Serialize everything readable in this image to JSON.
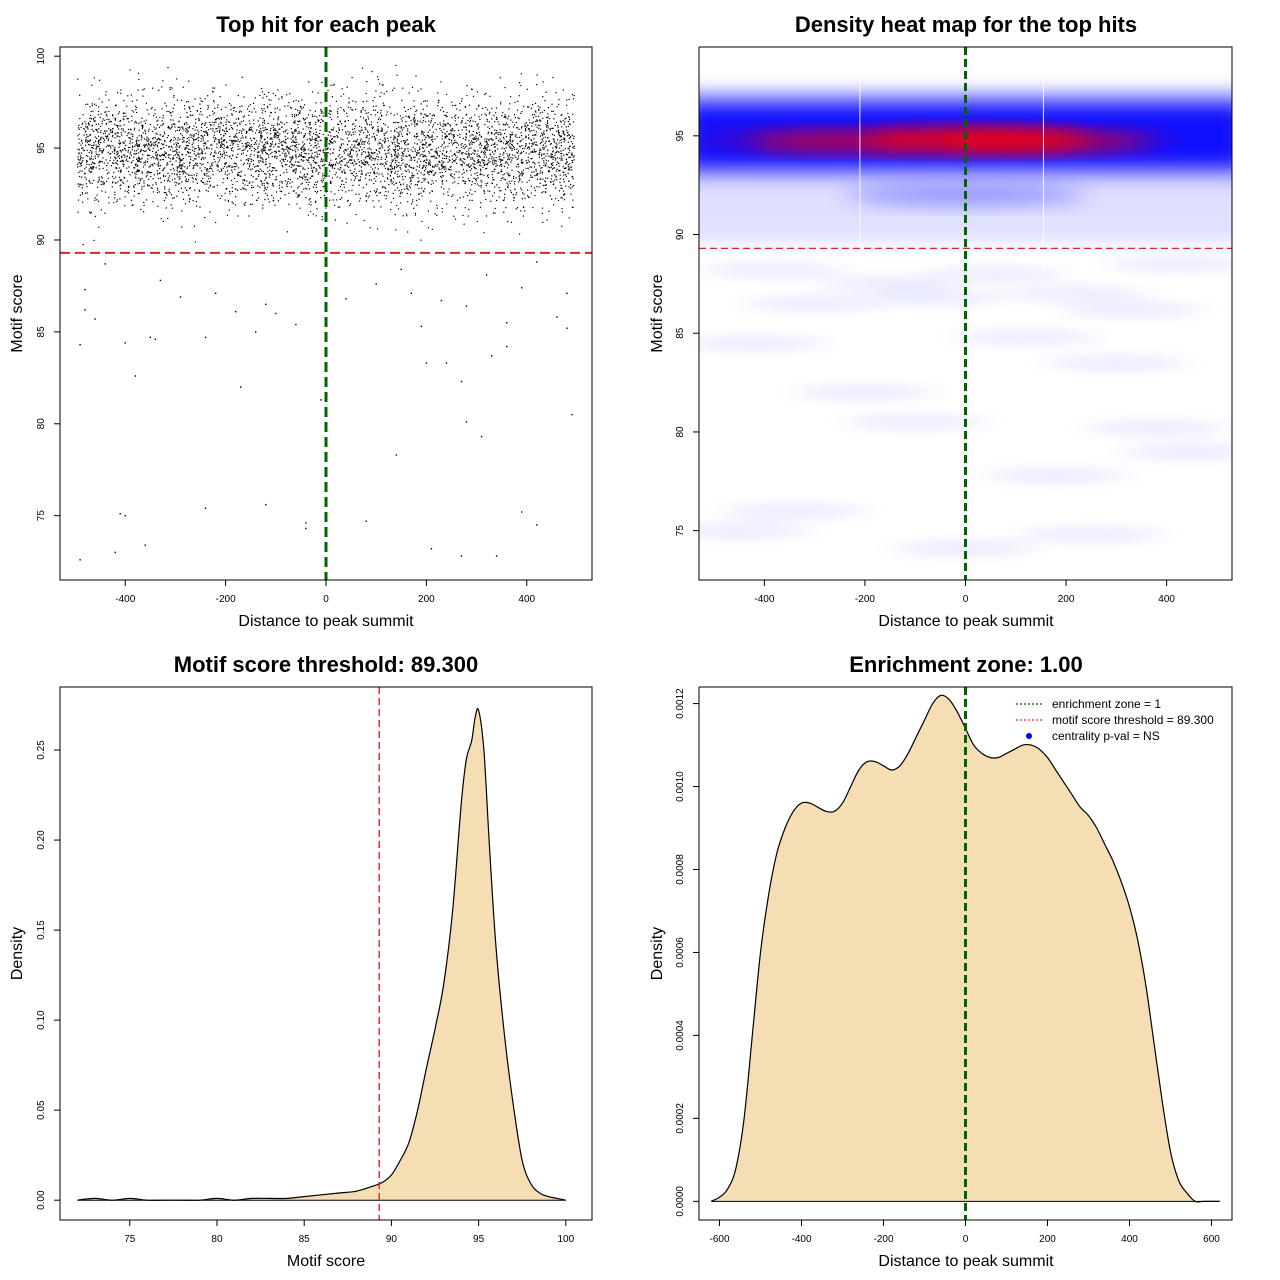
{
  "chart_data": [
    {
      "type": "scatter",
      "title": "Top hit for each peak",
      "xlabel": "Distance to peak summit",
      "ylabel": "Motif score",
      "xlim": [
        -530,
        530
      ],
      "ylim": [
        71.5,
        100.5
      ],
      "xticks": [
        "-400",
        "-200",
        "0",
        "200",
        "400"
      ],
      "xtick_values": [
        -400,
        -200,
        0,
        200,
        400
      ],
      "yticks": [
        "75",
        "80",
        "85",
        "90",
        "95",
        "100"
      ],
      "ytick_values": [
        75,
        80,
        85,
        90,
        95,
        100
      ],
      "vline": 0,
      "hline": 89.3,
      "n_points_approx": 5000,
      "main_band_center": 94.8,
      "main_band_range": [
        89.5,
        99.5
      ],
      "outliers": [
        [
          -490,
          72.6
        ],
        [
          -410,
          75.1
        ],
        [
          -400,
          75.0
        ],
        [
          -360,
          73.4
        ],
        [
          -420,
          73.0
        ],
        [
          -240,
          75.4
        ],
        [
          -120,
          75.6
        ],
        [
          -40,
          74.6
        ],
        [
          -40,
          74.3
        ],
        [
          80,
          74.7
        ],
        [
          210,
          73.2
        ],
        [
          270,
          72.8
        ],
        [
          340,
          72.8
        ],
        [
          390,
          75.2
        ],
        [
          420,
          74.5
        ],
        [
          -490,
          84.3
        ],
        [
          -480,
          86.2
        ],
        [
          -460,
          85.7
        ],
        [
          -400,
          84.4
        ],
        [
          -380,
          82.6
        ],
        [
          -350,
          84.7
        ],
        [
          -340,
          84.6
        ],
        [
          -240,
          84.7
        ],
        [
          -170,
          82.0
        ],
        [
          -140,
          85.0
        ],
        [
          -60,
          85.4
        ],
        [
          -10,
          81.3
        ],
        [
          140,
          78.3
        ],
        [
          190,
          85.3
        ],
        [
          200,
          83.3
        ],
        [
          240,
          83.3
        ],
        [
          270,
          82.3
        ],
        [
          280,
          80.1
        ],
        [
          310,
          79.3
        ],
        [
          330,
          83.7
        ],
        [
          360,
          84.2
        ],
        [
          360,
          85.5
        ],
        [
          460,
          85.8
        ],
        [
          480,
          85.2
        ],
        [
          490,
          80.5
        ],
        [
          -480,
          87.3
        ],
        [
          -440,
          88.7
        ],
        [
          -330,
          87.8
        ],
        [
          -290,
          86.9
        ],
        [
          -220,
          87.1
        ],
        [
          -180,
          86.1
        ],
        [
          -120,
          86.5
        ],
        [
          -100,
          86.0
        ],
        [
          40,
          86.8
        ],
        [
          100,
          87.6
        ],
        [
          150,
          88.4
        ],
        [
          170,
          87.1
        ],
        [
          230,
          86.7
        ],
        [
          280,
          86.4
        ],
        [
          320,
          88.1
        ],
        [
          390,
          87.4
        ],
        [
          420,
          88.8
        ],
        [
          480,
          87.1
        ]
      ]
    },
    {
      "type": "heatmap",
      "title": "Density heat map for the top hits",
      "xlabel": "Distance to peak summit",
      "ylabel": "Motif score",
      "xlim": [
        -530,
        530
      ],
      "ylim": [
        72.5,
        99.5
      ],
      "xticks": [
        "-400",
        "-200",
        "0",
        "200",
        "400"
      ],
      "xtick_values": [
        -400,
        -200,
        0,
        200,
        400
      ],
      "yticks": [
        "75",
        "80",
        "85",
        "90",
        "95"
      ],
      "ytick_values": [
        75,
        80,
        85,
        90,
        95
      ],
      "vline": 0,
      "hline": 89.3,
      "hot_band_center": 94.8,
      "hot_band_peak_x": 25,
      "colors": [
        "#ffffff",
        "#0000ff",
        "#ff0000"
      ]
    },
    {
      "type": "area",
      "title": "Motif score threshold: 89.300",
      "xlabel": "Motif score",
      "ylabel": "Density",
      "xlim": [
        71,
        101.5
      ],
      "ylim": [
        -0.011,
        0.285
      ],
      "xticks": [
        "75",
        "80",
        "85",
        "90",
        "95",
        "100"
      ],
      "xtick_values": [
        75,
        80,
        85,
        90,
        95,
        100
      ],
      "yticks": [
        "0.00",
        "0.05",
        "0.10",
        "0.15",
        "0.20",
        "0.25"
      ],
      "ytick_values": [
        0,
        0.05,
        0.1,
        0.15,
        0.2,
        0.25
      ],
      "vline": 89.3,
      "x": [
        72,
        73,
        74,
        75,
        76,
        77,
        78,
        79,
        80,
        81,
        82,
        83,
        84,
        85,
        86,
        87,
        88,
        89,
        89.5,
        90,
        90.5,
        91,
        91.5,
        92,
        92.5,
        93,
        93.5,
        94,
        94.3,
        94.6,
        94.8,
        95,
        95.3,
        95.6,
        96,
        96.5,
        97,
        97.5,
        98,
        98.5,
        99,
        99.5,
        100
      ],
      "y": [
        0,
        0.001,
        0,
        0.001,
        0,
        0,
        0,
        0,
        0.001,
        0,
        0.001,
        0.001,
        0.001,
        0.002,
        0.003,
        0.004,
        0.005,
        0.008,
        0.01,
        0.014,
        0.022,
        0.032,
        0.05,
        0.073,
        0.095,
        0.12,
        0.16,
        0.22,
        0.245,
        0.255,
        0.268,
        0.272,
        0.25,
        0.2,
        0.14,
        0.09,
        0.052,
        0.022,
        0.009,
        0.004,
        0.002,
        0.001,
        0
      ],
      "fill": "#f5deb3"
    },
    {
      "type": "area",
      "title": "Enrichment zone: 1.00",
      "xlabel": "Distance to peak summit",
      "ylabel": "Density",
      "xlim": [
        -650,
        650
      ],
      "ylim": [
        -4.5e-05,
        0.00124
      ],
      "xticks": [
        "-600",
        "-400",
        "-200",
        "0",
        "200",
        "400",
        "600"
      ],
      "xtick_values": [
        -600,
        -400,
        -200,
        0,
        200,
        400,
        600
      ],
      "yticks": [
        "0.0000",
        "0.0002",
        "0.0004",
        "0.0006",
        "0.0008",
        "0.0010",
        "0.0012"
      ],
      "ytick_values": [
        0,
        0.0002,
        0.0004,
        0.0006,
        0.0008,
        0.001,
        0.0012
      ],
      "vline": 0,
      "x": [
        -620,
        -600,
        -580,
        -560,
        -540,
        -520,
        -500,
        -480,
        -460,
        -440,
        -420,
        -400,
        -380,
        -360,
        -340,
        -320,
        -300,
        -280,
        -260,
        -240,
        -220,
        -200,
        -180,
        -160,
        -140,
        -120,
        -100,
        -80,
        -60,
        -40,
        -20,
        0,
        20,
        40,
        60,
        80,
        100,
        120,
        140,
        160,
        180,
        200,
        220,
        240,
        260,
        280,
        300,
        320,
        340,
        360,
        380,
        400,
        420,
        440,
        460,
        480,
        500,
        520,
        540,
        560,
        580,
        600,
        620
      ],
      "y": [
        0,
        1e-05,
        3e-05,
        8e-05,
        0.0002,
        0.0004,
        0.0006,
        0.00074,
        0.00084,
        0.0009,
        0.00094,
        0.00096,
        0.00096,
        0.00095,
        0.00094,
        0.00094,
        0.00096,
        0.001,
        0.00104,
        0.00106,
        0.00106,
        0.00105,
        0.00104,
        0.00105,
        0.00108,
        0.00112,
        0.00116,
        0.0012,
        0.00122,
        0.00121,
        0.00118,
        0.00114,
        0.0011,
        0.00108,
        0.00107,
        0.00107,
        0.00108,
        0.00109,
        0.0011,
        0.0011,
        0.00109,
        0.00107,
        0.00104,
        0.00101,
        0.00098,
        0.00095,
        0.00093,
        0.0009,
        0.00086,
        0.00082,
        0.00077,
        0.00071,
        0.00063,
        0.00052,
        0.00038,
        0.00024,
        0.00012,
        5e-05,
        2e-05,
        0,
        0,
        0,
        0
      ],
      "fill": "#f5deb3",
      "legend": {
        "position": "top-right",
        "entries": [
          {
            "label": "enrichment zone = 1",
            "style": "dotted",
            "color": "#006400"
          },
          {
            "label": "motif score threshold = 89.300",
            "style": "dotted",
            "color": "#d62728"
          },
          {
            "label": "centrality p-val = NS",
            "style": "point",
            "color": "#0000ff"
          }
        ]
      }
    }
  ]
}
